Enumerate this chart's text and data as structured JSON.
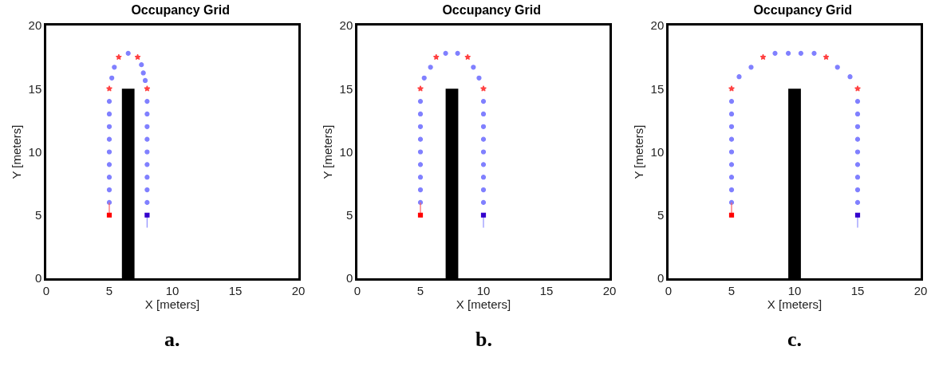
{
  "chart_data": [
    {
      "type": "scatter",
      "title": "Occupancy Grid",
      "xlabel": "X [meters]",
      "ylabel": "Y [meters]",
      "annotations": [
        "a."
      ],
      "xlim": [
        0,
        20
      ],
      "ylim": [
        0,
        20
      ],
      "xticks": [
        0,
        5,
        10,
        15,
        20
      ],
      "yticks": [
        0,
        5,
        10,
        15,
        20
      ],
      "grid": false,
      "legend": false,
      "series": [
        {
          "type": "area",
          "color": "#000000",
          "x": [
            6,
            7
          ],
          "values": [
            15,
            15
          ]
        },
        {
          "color": "#8080ff",
          "marker": "circle",
          "x": [
            5,
            5,
            5,
            5,
            5,
            5,
            5,
            5,
            5,
            5.2,
            5.4,
            6.5,
            7.55,
            7.7,
            7.85,
            8,
            8,
            8,
            8,
            8,
            8,
            8,
            8,
            8
          ],
          "values": [
            6,
            7,
            8,
            9,
            10,
            11,
            12,
            13,
            14,
            15.85,
            16.7,
            17.8,
            16.9,
            16.25,
            15.65,
            14,
            13,
            12,
            11,
            10,
            9,
            8,
            7,
            6
          ]
        },
        {
          "type": "scatter",
          "color": "#ff4040",
          "marker": "star",
          "x": [
            5,
            5.75,
            7.25,
            8
          ],
          "values": [
            15,
            17.5,
            17.5,
            15
          ]
        },
        {
          "type": "line",
          "color": "#ff6060",
          "x": [
            5,
            5
          ],
          "values": [
            5,
            6
          ]
        },
        {
          "type": "line",
          "color": "#9090ff",
          "x": [
            8,
            8
          ],
          "values": [
            5,
            4
          ]
        },
        {
          "type": "scatter",
          "color": "#ff0000",
          "marker": "square",
          "x": [
            5
          ],
          "values": [
            5
          ]
        },
        {
          "type": "scatter",
          "color": "#3300cc",
          "marker": "square",
          "x": [
            8
          ],
          "values": [
            5
          ]
        }
      ]
    },
    {
      "type": "scatter",
      "title": "Occupancy Grid",
      "xlabel": "X [meters]",
      "ylabel": "Y [meters]",
      "annotations": [
        "b."
      ],
      "xlim": [
        0,
        20
      ],
      "ylim": [
        0,
        20
      ],
      "xticks": [
        0,
        5,
        10,
        15,
        20
      ],
      "yticks": [
        0,
        5,
        10,
        15,
        20
      ],
      "grid": false,
      "legend": false,
      "series": [
        {
          "type": "area",
          "color": "#000000",
          "x": [
            7,
            8
          ],
          "values": [
            15,
            15
          ]
        },
        {
          "color": "#8080ff",
          "marker": "circle",
          "x": [
            5,
            5,
            5,
            5,
            5,
            5,
            5,
            5,
            5,
            5.3,
            5.8,
            7,
            7.95,
            9.2,
            9.65,
            10,
            10,
            10,
            10,
            10,
            10,
            10,
            10,
            10
          ],
          "values": [
            6,
            7,
            8,
            9,
            10,
            11,
            12,
            13,
            14,
            15.85,
            16.7,
            17.8,
            17.8,
            16.7,
            15.85,
            14,
            13,
            12,
            11,
            10,
            9,
            8,
            7,
            6
          ]
        },
        {
          "type": "scatter",
          "color": "#ff4040",
          "marker": "star",
          "x": [
            5,
            6.25,
            8.75,
            10
          ],
          "values": [
            15,
            17.5,
            17.5,
            15
          ]
        },
        {
          "type": "line",
          "color": "#ff6060",
          "x": [
            5,
            5
          ],
          "values": [
            5,
            6
          ]
        },
        {
          "type": "line",
          "color": "#9090ff",
          "x": [
            10,
            10
          ],
          "values": [
            5,
            4
          ]
        },
        {
          "type": "scatter",
          "color": "#ff0000",
          "marker": "square",
          "x": [
            5
          ],
          "values": [
            5
          ]
        },
        {
          "type": "scatter",
          "color": "#3300cc",
          "marker": "square",
          "x": [
            10
          ],
          "values": [
            5
          ]
        }
      ]
    },
    {
      "type": "scatter",
      "title": "Occupancy Grid",
      "xlabel": "X [meters]",
      "ylabel": "Y [meters]",
      "annotations": [
        "c."
      ],
      "xlim": [
        0,
        20
      ],
      "ylim": [
        0,
        20
      ],
      "xticks": [
        0,
        5,
        10,
        15,
        20
      ],
      "yticks": [
        0,
        5,
        10,
        15,
        20
      ],
      "grid": false,
      "legend": false,
      "series": [
        {
          "type": "area",
          "color": "#000000",
          "x": [
            9.5,
            10.5
          ],
          "values": [
            15,
            15
          ]
        },
        {
          "color": "#8080ff",
          "marker": "circle",
          "x": [
            5,
            5,
            5,
            5,
            5,
            5,
            5,
            5,
            5,
            5.6,
            6.55,
            8.45,
            9.5,
            10.5,
            11.55,
            13.4,
            14.4,
            15,
            15,
            15,
            15,
            15,
            15,
            15,
            15,
            15
          ],
          "values": [
            6,
            7,
            8,
            9,
            10,
            11,
            12,
            13,
            14,
            15.95,
            16.7,
            17.8,
            17.8,
            17.8,
            17.8,
            16.7,
            15.95,
            14,
            13,
            12,
            11,
            10,
            9,
            8,
            7,
            6
          ]
        },
        {
          "type": "scatter",
          "color": "#ff4040",
          "marker": "star",
          "x": [
            5,
            7.5,
            12.5,
            15
          ],
          "values": [
            15,
            17.5,
            17.5,
            15
          ]
        },
        {
          "type": "line",
          "color": "#ff6060",
          "x": [
            5,
            5
          ],
          "values": [
            5,
            6
          ]
        },
        {
          "type": "line",
          "color": "#9090ff",
          "x": [
            15,
            15
          ],
          "values": [
            5,
            4
          ]
        },
        {
          "type": "scatter",
          "color": "#ff0000",
          "marker": "square",
          "x": [
            5
          ],
          "values": [
            5
          ]
        },
        {
          "type": "scatter",
          "color": "#3300cc",
          "marker": "square",
          "x": [
            15
          ],
          "values": [
            5
          ]
        }
      ]
    }
  ]
}
